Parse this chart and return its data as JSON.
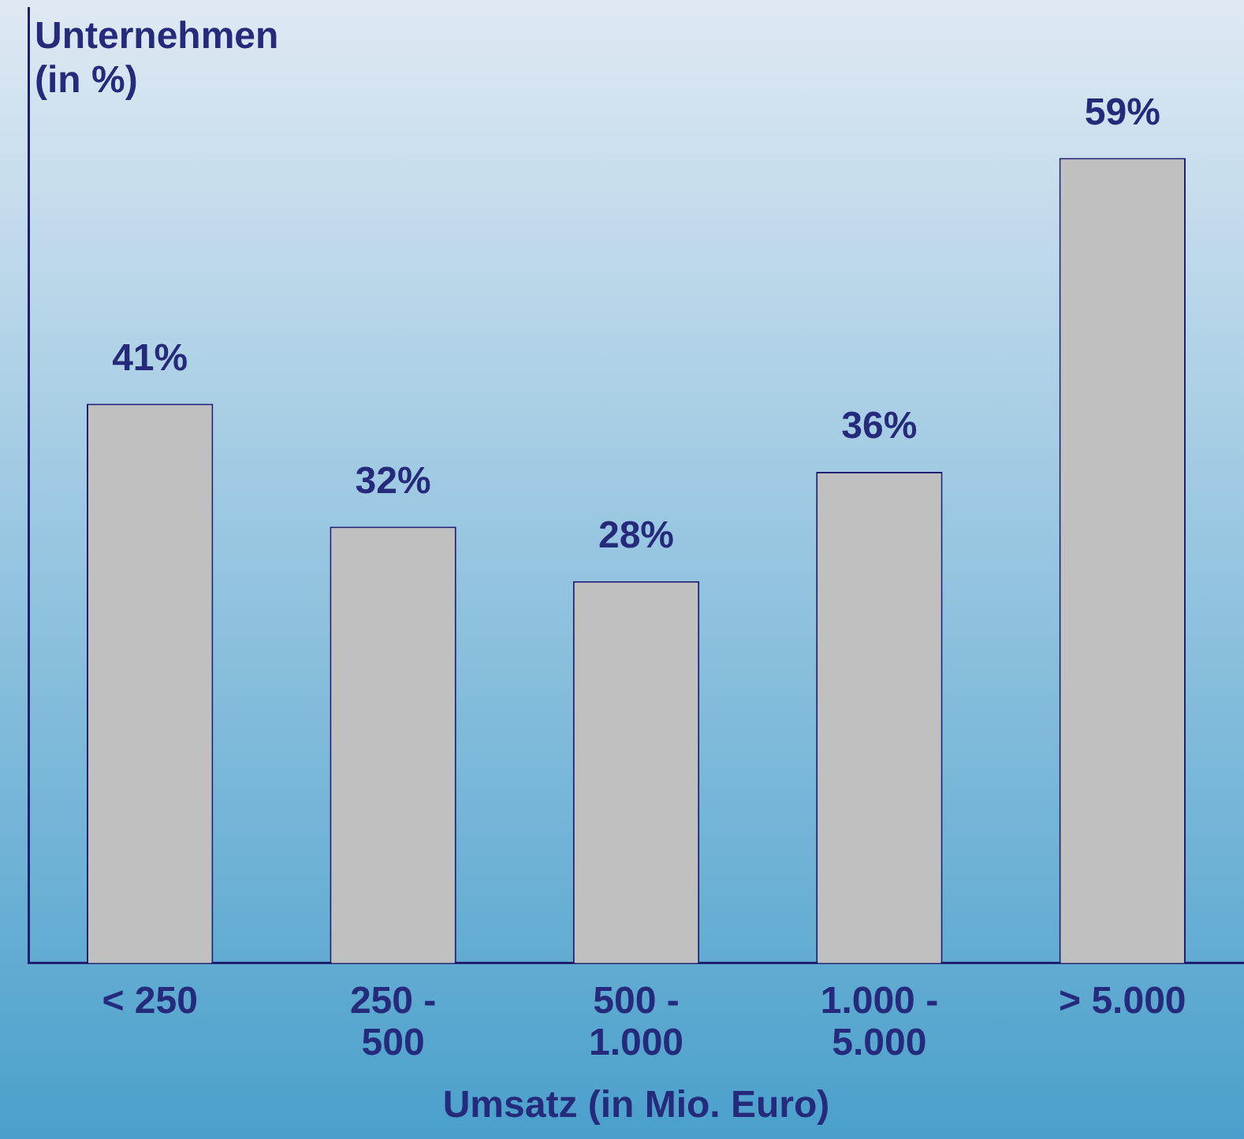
{
  "chart_data": {
    "type": "bar",
    "xlabel": "Umsatz (in Mio. Euro)",
    "ylabel": "Unternehmen (in %)",
    "categories": [
      "< 250",
      "250 - 500",
      "500 - 1.000",
      "1.000 - 5.000",
      "> 5.000"
    ],
    "values": [
      41,
      32,
      28,
      36,
      59
    ],
    "value_labels": [
      "41%",
      "32%",
      "28%",
      "36%",
      "59%"
    ],
    "color": "#c0c0c0",
    "ylim": [
      0,
      70
    ],
    "tick_labels": "x",
    "grid": false,
    "legend": false
  }
}
